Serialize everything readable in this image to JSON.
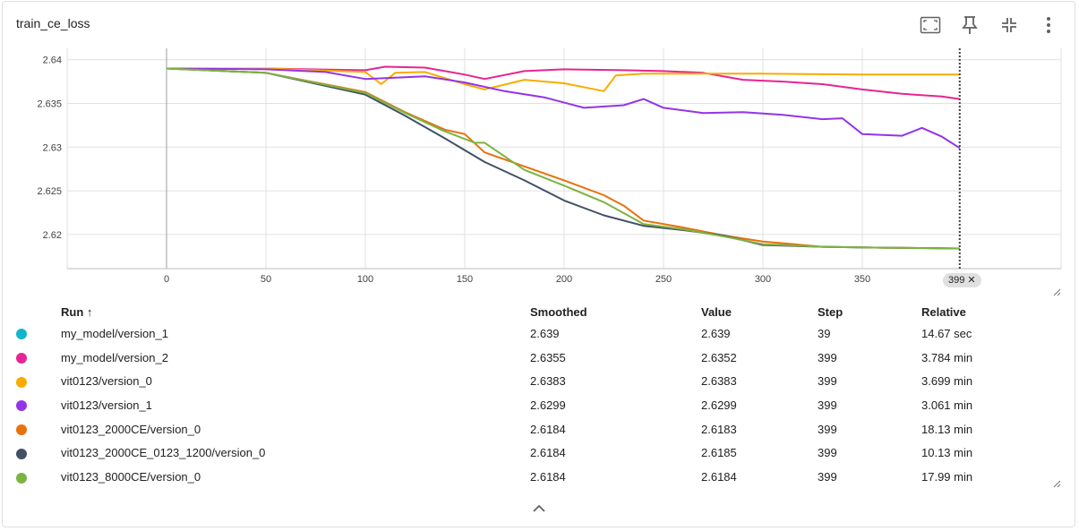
{
  "card": {
    "title": "train_ce_loss"
  },
  "toolbar": {
    "icons": [
      "fit-domain-icon",
      "pin-icon",
      "collapse-icon",
      "more-vert-icon"
    ]
  },
  "chart_data": {
    "type": "line",
    "title": "",
    "xlabel": "",
    "ylabel": "",
    "xlim": [
      -50,
      450
    ],
    "ylim": [
      2.6161,
      2.6413
    ],
    "x_ticks": [
      "0",
      "50",
      "100",
      "150",
      "200",
      "250",
      "300",
      "350"
    ],
    "y_ticks": [
      "2.62",
      "2.625",
      "2.63",
      "2.635",
      "2.64"
    ],
    "y_tick_values": [
      2.62,
      2.625,
      2.63,
      2.635,
      2.64
    ],
    "x_tick_values": [
      0,
      50,
      100,
      150,
      200,
      250,
      300,
      350
    ],
    "hover_step": 399,
    "hover_label": "399",
    "grid": true,
    "series": [
      {
        "name": "my_model/version_1",
        "color": "#12b5cb",
        "x": [
          0,
          39
        ],
        "y": [
          2.639,
          2.639
        ]
      },
      {
        "name": "my_model/version_2",
        "color": "#e52592",
        "x": [
          0,
          50,
          100,
          110,
          130,
          150,
          160,
          180,
          200,
          230,
          250,
          270,
          290,
          310,
          330,
          350,
          370,
          390,
          399
        ],
        "y": [
          2.639,
          2.639,
          2.6388,
          2.6392,
          2.6391,
          2.6383,
          2.6378,
          2.6387,
          2.6389,
          2.6388,
          2.6387,
          2.6385,
          2.6377,
          2.6375,
          2.6372,
          2.6366,
          2.6361,
          2.6358,
          2.6355
        ]
      },
      {
        "name": "vit0123/version_0",
        "color": "#f9ab00",
        "x": [
          0,
          50,
          100,
          108,
          115,
          130,
          150,
          160,
          180,
          200,
          220,
          226,
          240,
          260,
          300,
          350,
          399
        ],
        "y": [
          2.639,
          2.639,
          2.6386,
          2.6372,
          2.6385,
          2.6386,
          2.6372,
          2.6366,
          2.6377,
          2.6373,
          2.6364,
          2.6382,
          2.6384,
          2.6384,
          2.6384,
          2.6383,
          2.6383
        ]
      },
      {
        "name": "vit0123/version_1",
        "color": "#9334e6",
        "x": [
          0,
          50,
          80,
          100,
          130,
          150,
          170,
          190,
          210,
          230,
          240,
          250,
          270,
          290,
          310,
          330,
          340,
          350,
          370,
          380,
          390,
          399
        ],
        "y": [
          2.639,
          2.6389,
          2.6386,
          2.6378,
          2.6381,
          2.6374,
          2.6364,
          2.6357,
          2.6345,
          2.6348,
          2.6355,
          2.6345,
          2.6339,
          2.634,
          2.6337,
          2.6332,
          2.6333,
          2.6315,
          2.6313,
          2.6322,
          2.6312,
          2.6299
        ]
      },
      {
        "name": "vit0123_2000CE/version_0",
        "color": "#e8710a",
        "x": [
          0,
          50,
          100,
          120,
          140,
          150,
          160,
          180,
          200,
          220,
          230,
          240,
          260,
          280,
          300,
          330,
          360,
          399
        ],
        "y": [
          2.639,
          2.6385,
          2.6363,
          2.634,
          2.632,
          2.6315,
          2.6294,
          2.6278,
          2.6262,
          2.6245,
          2.6233,
          2.6216,
          2.6208,
          2.6199,
          2.6192,
          2.6186,
          2.6185,
          2.6184
        ]
      },
      {
        "name": "vit0123_2000CE_0123_1200/version_0",
        "color": "#425066",
        "x": [
          0,
          50,
          100,
          120,
          140,
          160,
          180,
          200,
          220,
          240,
          260,
          280,
          300,
          330,
          360,
          399
        ],
        "y": [
          2.639,
          2.6385,
          2.636,
          2.6336,
          2.631,
          2.6283,
          2.6262,
          2.6239,
          2.6222,
          2.621,
          2.6205,
          2.6199,
          2.6188,
          2.6186,
          2.6185,
          2.6184
        ]
      },
      {
        "name": "vit0123_8000CE/version_0",
        "color": "#7cb342",
        "x": [
          0,
          50,
          100,
          120,
          140,
          155,
          160,
          180,
          200,
          220,
          240,
          260,
          280,
          300,
          330,
          360,
          399
        ],
        "y": [
          2.639,
          2.6385,
          2.6362,
          2.6339,
          2.6318,
          2.6305,
          2.6305,
          2.6274,
          2.6256,
          2.6237,
          2.6212,
          2.6206,
          2.6198,
          2.6189,
          2.6186,
          2.6185,
          2.6184
        ]
      }
    ]
  },
  "table": {
    "headers": {
      "run": "Run ↑",
      "smoothed": "Smoothed",
      "value": "Value",
      "step": "Step",
      "relative": "Relative"
    },
    "rows": [
      {
        "color": "#12b5cb",
        "run": "my_model/version_1",
        "smoothed": "2.639",
        "value": "2.639",
        "step": "39",
        "relative": "14.67 sec"
      },
      {
        "color": "#e52592",
        "run": "my_model/version_2",
        "smoothed": "2.6355",
        "value": "2.6352",
        "step": "399",
        "relative": "3.784 min"
      },
      {
        "color": "#f9ab00",
        "run": "vit0123/version_0",
        "smoothed": "2.6383",
        "value": "2.6383",
        "step": "399",
        "relative": "3.699 min"
      },
      {
        "color": "#9334e6",
        "run": "vit0123/version_1",
        "smoothed": "2.6299",
        "value": "2.6299",
        "step": "399",
        "relative": "3.061 min"
      },
      {
        "color": "#e8710a",
        "run": "vit0123_2000CE/version_0",
        "smoothed": "2.6184",
        "value": "2.6183",
        "step": "399",
        "relative": "18.13 min"
      },
      {
        "color": "#425066",
        "run": "vit0123_2000CE_0123_1200/version_0",
        "smoothed": "2.6184",
        "value": "2.6185",
        "step": "399",
        "relative": "10.13 min"
      },
      {
        "color": "#7cb342",
        "run": "vit0123_8000CE/version_0",
        "smoothed": "2.6184",
        "value": "2.6184",
        "step": "399",
        "relative": "17.99 min"
      }
    ]
  }
}
